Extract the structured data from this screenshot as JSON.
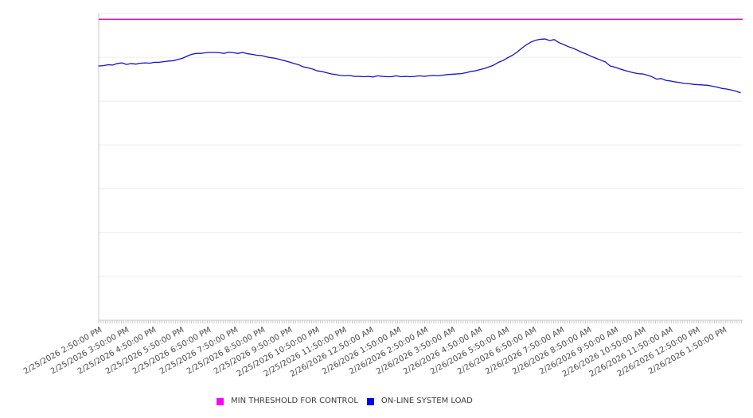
{
  "chart_data": {
    "type": "line",
    "title": "",
    "legend_position": "bottom",
    "x_axis": {
      "label_rotation_deg": -29,
      "tick_interval": "1 hour",
      "minor_tick_interval": "5 minutes",
      "labels": [
        "2/25/2026 2:50:00 PM",
        "2/25/2026 3:50:00 PM",
        "2/25/2026 4:50:00 PM",
        "2/25/2026 5:50:00 PM",
        "2/25/2026 6:50:00 PM",
        "2/25/2026 7:50:00 PM",
        "2/25/2026 8:50:00 PM",
        "2/25/2026 9:50:00 PM",
        "2/25/2026 10:50:00 PM",
        "2/25/2026 11:50:00 PM",
        "2/26/2026 12:50:00 AM",
        "2/26/2026 1:50:00 AM",
        "2/26/2026 2:50:00 AM",
        "2/26/2026 3:50:00 AM",
        "2/26/2026 4:50:00 AM",
        "2/26/2026 5:50:00 AM",
        "2/26/2026 6:50:00 AM",
        "2/26/2026 7:50:00 AM",
        "2/26/2026 8:50:00 AM",
        "2/26/2026 9:50:00 AM",
        "2/26/2026 10:50:00 AM",
        "2/26/2026 11:50:00 AM",
        "2/26/2026 12:50:00 PM",
        "2/26/2026 1:50:00 PM"
      ]
    },
    "y_axis": {
      "tick_labels_visible": false,
      "gridline_divisions": 7,
      "unit": "percent_of_plot_height"
    },
    "series": [
      {
        "name": "MIN THRESHOLD FOR CONTROL",
        "type": "constant-line",
        "legend_color": "#FF00FF",
        "line_color": "#C81EBE",
        "value_pct": 98.1
      },
      {
        "name": "ON-LINE SYSTEM LOAD",
        "type": "line",
        "legend_color": "#0000FF",
        "line_color": "#1414C8",
        "start_time": "2/25/2026 2:50:00 PM",
        "end_time": "2/26/2026 1:50:00 PM",
        "sample_interval_minutes": 10,
        "values_pct": [
          82.9,
          83.0,
          83.3,
          83.2,
          83.7,
          83.9,
          83.4,
          83.7,
          83.5,
          83.8,
          83.9,
          83.8,
          84.1,
          84.1,
          84.3,
          84.5,
          84.6,
          85.0,
          85.4,
          86.1,
          86.7,
          87.0,
          87.0,
          87.2,
          87.3,
          87.3,
          87.2,
          87.0,
          87.4,
          87.2,
          87.0,
          87.3,
          86.9,
          86.7,
          86.4,
          86.3,
          85.9,
          85.6,
          85.4,
          85.0,
          84.6,
          84.2,
          83.7,
          83.3,
          82.6,
          82.3,
          81.9,
          81.3,
          81.1,
          80.7,
          80.3,
          80.1,
          79.8,
          79.7,
          79.8,
          79.5,
          79.5,
          79.4,
          79.5,
          79.3,
          79.7,
          79.5,
          79.4,
          79.4,
          79.7,
          79.4,
          79.5,
          79.4,
          79.5,
          79.7,
          79.5,
          79.7,
          79.8,
          79.7,
          79.9,
          80.1,
          80.2,
          80.3,
          80.4,
          80.7,
          81.1,
          81.3,
          81.7,
          82.1,
          82.6,
          83.2,
          84.1,
          84.7,
          85.6,
          86.4,
          87.4,
          88.7,
          89.8,
          90.7,
          91.3,
          91.6,
          91.7,
          91.2,
          91.5,
          90.5,
          89.9,
          89.2,
          88.7,
          88.0,
          87.3,
          86.7,
          86.0,
          85.4,
          84.8,
          84.2,
          82.9,
          82.5,
          82.0,
          81.5,
          81.1,
          80.7,
          80.4,
          80.3,
          79.9,
          79.4,
          78.6,
          78.8,
          78.2,
          78.0,
          77.7,
          77.5,
          77.2,
          77.1,
          76.9,
          76.8,
          76.7,
          76.6,
          76.3,
          76.0,
          75.6,
          75.4,
          75.1,
          74.7,
          74.2
        ]
      }
    ]
  },
  "legend": {
    "items": [
      {
        "label": "MIN THRESHOLD FOR CONTROL",
        "color": "#FF00FF"
      },
      {
        "label": "ON-LINE SYSTEM LOAD",
        "color": "#0000FF"
      }
    ]
  }
}
